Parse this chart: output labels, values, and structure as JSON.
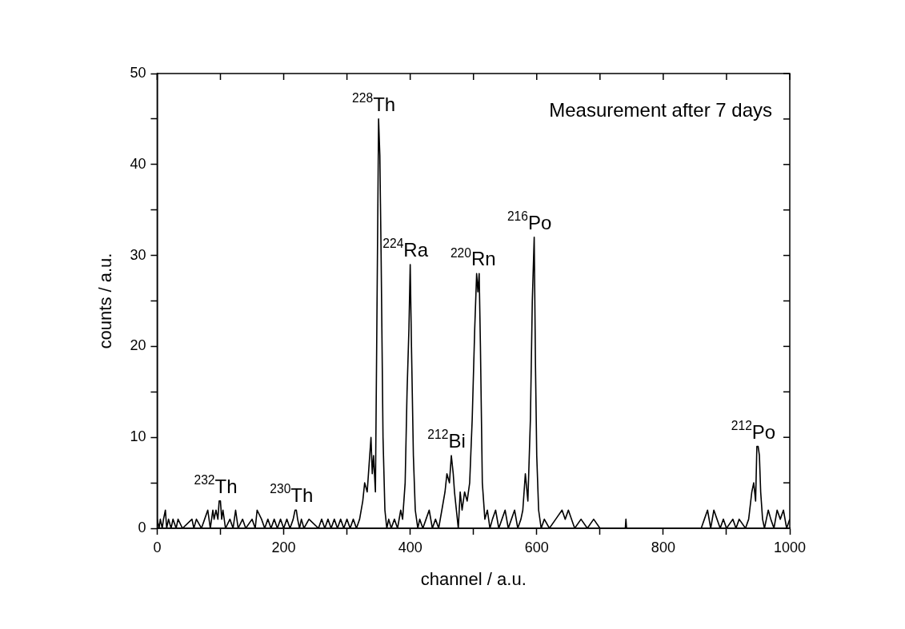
{
  "chart_data": {
    "type": "line",
    "xlabel": "channel / a.u.",
    "ylabel": "counts / a.u.",
    "xlim": [
      0,
      1000
    ],
    "ylim": [
      0,
      50
    ],
    "xticks": [
      0,
      {
        "value": 100,
        "label": null
      },
      200,
      {
        "value": 300,
        "label": null
      },
      400,
      {
        "value": 500,
        "label": null
      },
      600,
      {
        "value": 700,
        "label": null
      },
      800,
      {
        "value": 900,
        "label": null
      },
      1000
    ],
    "yticks": [
      0,
      {
        "value": 5,
        "label": null
      },
      10,
      {
        "value": 15,
        "label": null
      },
      20,
      {
        "value": 25,
        "label": null
      },
      30,
      {
        "value": 35,
        "label": null
      },
      40,
      {
        "value": 45,
        "label": null
      },
      50
    ],
    "grid": false,
    "legend": false,
    "marker": "none",
    "line_style": "solid",
    "series": [
      {
        "color": "#000000",
        "x": [
          0,
          3,
          5,
          8,
          10,
          13,
          15,
          18,
          22,
          25,
          30,
          33,
          40,
          55,
          58,
          62,
          70,
          75,
          80,
          84,
          88,
          90,
          93,
          96,
          98,
          100,
          102,
          104,
          108,
          115,
          120,
          124,
          128,
          135,
          140,
          150,
          155,
          158,
          165,
          170,
          175,
          180,
          185,
          190,
          195,
          200,
          205,
          210,
          215,
          218,
          220,
          222,
          225,
          228,
          232,
          240,
          255,
          260,
          265,
          270,
          275,
          280,
          285,
          290,
          295,
          300,
          305,
          310,
          315,
          320,
          325,
          328,
          332,
          335,
          338,
          340,
          342,
          345,
          347,
          350,
          352,
          354,
          357,
          360,
          363,
          366,
          370,
          375,
          380,
          385,
          388,
          392,
          395,
          398,
          400,
          402,
          405,
          408,
          412,
          415,
          420,
          425,
          430,
          435,
          440,
          445,
          450,
          455,
          458,
          462,
          465,
          468,
          470,
          473,
          476,
          479,
          482,
          486,
          490,
          494,
          498,
          502,
          505,
          507,
          509,
          511,
          514,
          518,
          522,
          526,
          530,
          535,
          540,
          545,
          550,
          555,
          560,
          565,
          570,
          575,
          578,
          582,
          586,
          590,
          593,
          596,
          598,
          600,
          603,
          607,
          612,
          620,
          630,
          640,
          645,
          650,
          660,
          670,
          680,
          690,
          700,
          740,
          741,
          742,
          860,
          865,
          870,
          875,
          880,
          885,
          890,
          895,
          900,
          910,
          915,
          920,
          930,
          935,
          940,
          943,
          946,
          948,
          950,
          952,
          954,
          957,
          960,
          963,
          966,
          970,
          975,
          980,
          985,
          990,
          995,
          1000
        ],
        "values": [
          1,
          0,
          1,
          0,
          1,
          2,
          0,
          1,
          0,
          1,
          0,
          1,
          0,
          1,
          0,
          1,
          0,
          1,
          2,
          0,
          2,
          1,
          2,
          1,
          3,
          3,
          1,
          2,
          0,
          1,
          0,
          2,
          0,
          1,
          0,
          1,
          0,
          2,
          1,
          0,
          1,
          0,
          1,
          0,
          1,
          0,
          1,
          0,
          1,
          2,
          2,
          1,
          0,
          1,
          0,
          1,
          0,
          1,
          0,
          1,
          0,
          1,
          0,
          1,
          0,
          1,
          0,
          1,
          0,
          1,
          3,
          5,
          4,
          7,
          10,
          6,
          8,
          4,
          20,
          45,
          41,
          30,
          10,
          2,
          0,
          1,
          0,
          1,
          0,
          2,
          1,
          5,
          15,
          22,
          29,
          20,
          8,
          2,
          0,
          1,
          0,
          1,
          2,
          0,
          1,
          0,
          2,
          4,
          6,
          5,
          8,
          6,
          4,
          2,
          0,
          4,
          2,
          4,
          3,
          5,
          12,
          22,
          28,
          26,
          28,
          20,
          5,
          1,
          2,
          0,
          1,
          2,
          0,
          1,
          2,
          0,
          1,
          2,
          0,
          1,
          2,
          6,
          3,
          12,
          25,
          32,
          18,
          8,
          2,
          0,
          1,
          0,
          1,
          2,
          1,
          2,
          0,
          1,
          0,
          1,
          0,
          0,
          1,
          0,
          0,
          1,
          2,
          0,
          2,
          1,
          0,
          1,
          0,
          1,
          0,
          1,
          0,
          1,
          4,
          5,
          3,
          9,
          9,
          8,
          4,
          1,
          0,
          1,
          2,
          1,
          0,
          2,
          1,
          2,
          0,
          1
        ]
      }
    ],
    "annotations": [
      "Measurement after 7 days",
      {
        "text": "$^{232}$Th",
        "x": 100,
        "y": 3
      },
      {
        "text": "$^{230}$Th",
        "x": 220,
        "y": 2
      },
      {
        "text": "$^{228}$Th",
        "x": 350,
        "y": 45
      },
      {
        "text": "$^{224}$Ra",
        "x": 400,
        "y": 29
      },
      {
        "text": "$^{212}$Bi",
        "x": 465,
        "y": 8
      },
      {
        "text": "$^{220}$Rn",
        "x": 507,
        "y": 28
      },
      {
        "text": "$^{216}$Po",
        "x": 596,
        "y": 32
      },
      {
        "text": "$^{212}$Po",
        "x": 950,
        "y": 9
      }
    ]
  }
}
